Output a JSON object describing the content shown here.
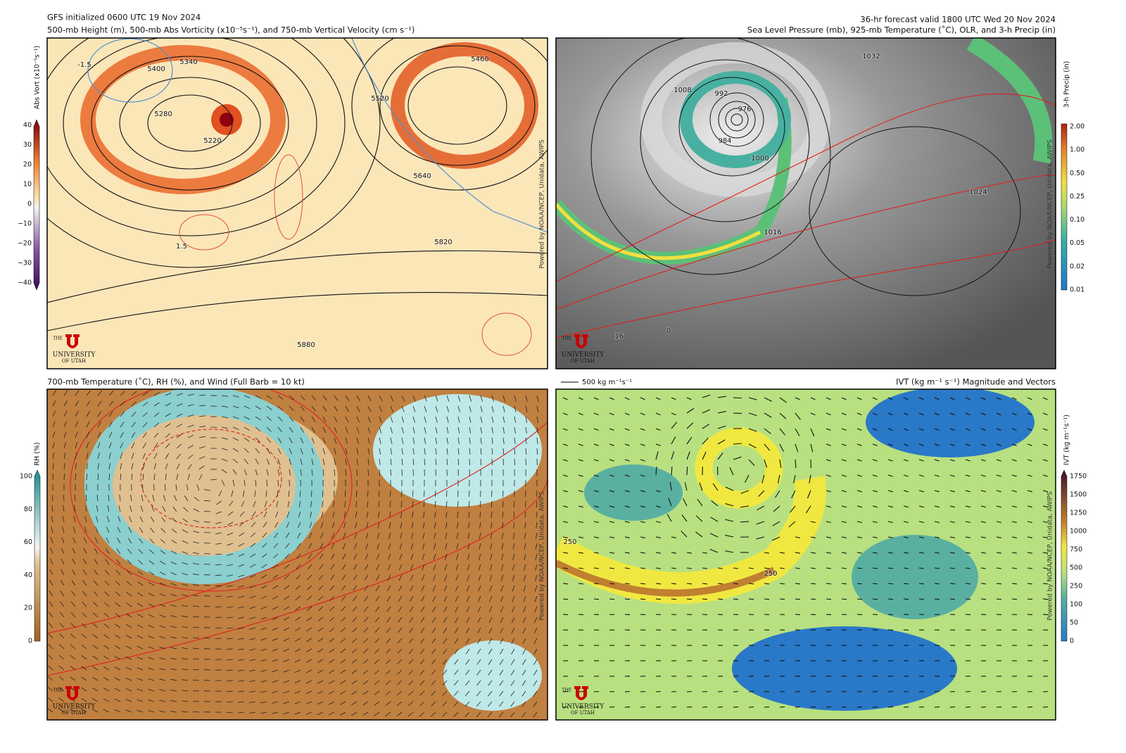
{
  "header": {
    "init": "GFS initialized 0600 UTC 19 Nov 2024",
    "top_left_title": "500-mb Height (m), 500-mb Abs Vorticity (x10⁻⁵s⁻¹), and 750-mb Vertical Velocity (cm s⁻¹)",
    "valid": "36-hr forecast valid 1800 UTC Wed 20 Nov 2024",
    "top_right_title": "Sea Level Pressure (mb), 925-mb Temperature (˚C), OLR, and 3-h Precip (in)"
  },
  "bottom_left": {
    "title": "700-mb Temperature (˚C), RH (%), and Wind (Full Barb = 10 kt)"
  },
  "bottom_right": {
    "title": "IVT (kg m⁻¹ s⁻¹) Magnitude and Vectors",
    "vector_key": "500 kg m⁻¹s⁻¹"
  },
  "colorbars": {
    "vort": {
      "label": "Abs Vort (x10⁻⁵s⁻¹)",
      "ticks": [
        "40",
        "30",
        "20",
        "10",
        "0",
        "−10",
        "−20",
        "−30",
        "−40"
      ]
    },
    "precip": {
      "label": "3-h Precip (in)",
      "ticks": [
        "2.00",
        "1.00",
        "0.50",
        "0.25",
        "0.10",
        "0.05",
        "0.02",
        "0.01"
      ]
    },
    "rh": {
      "label": "RH (%)",
      "ticks": [
        "100",
        "80",
        "60",
        "40",
        "20",
        "0"
      ]
    },
    "ivt": {
      "label": "IVT (kg m⁻¹s⁻¹)",
      "ticks": [
        "1750",
        "1500",
        "1250",
        "1000",
        "750",
        "500",
        "250",
        "100",
        "50",
        "0"
      ]
    }
  },
  "contour_labels": {
    "top_left": [
      "5400",
      "5340",
      "5280",
      "5220",
      "5460",
      "5520",
      "5640",
      "5820",
      "5880",
      "-1.5",
      "1.5"
    ],
    "top_right": [
      "1008",
      "992",
      "976",
      "984",
      "1000",
      "1016",
      "1024",
      "1032",
      "16",
      "0"
    ],
    "bottom_right": [
      "250",
      "250"
    ]
  },
  "credit": "Powered by NOAA/NCEP, Unidata, AWIPS",
  "logo": {
    "the": "THE",
    "university": "UNIVERSITY",
    "of_utah": "OF UTAH"
  }
}
